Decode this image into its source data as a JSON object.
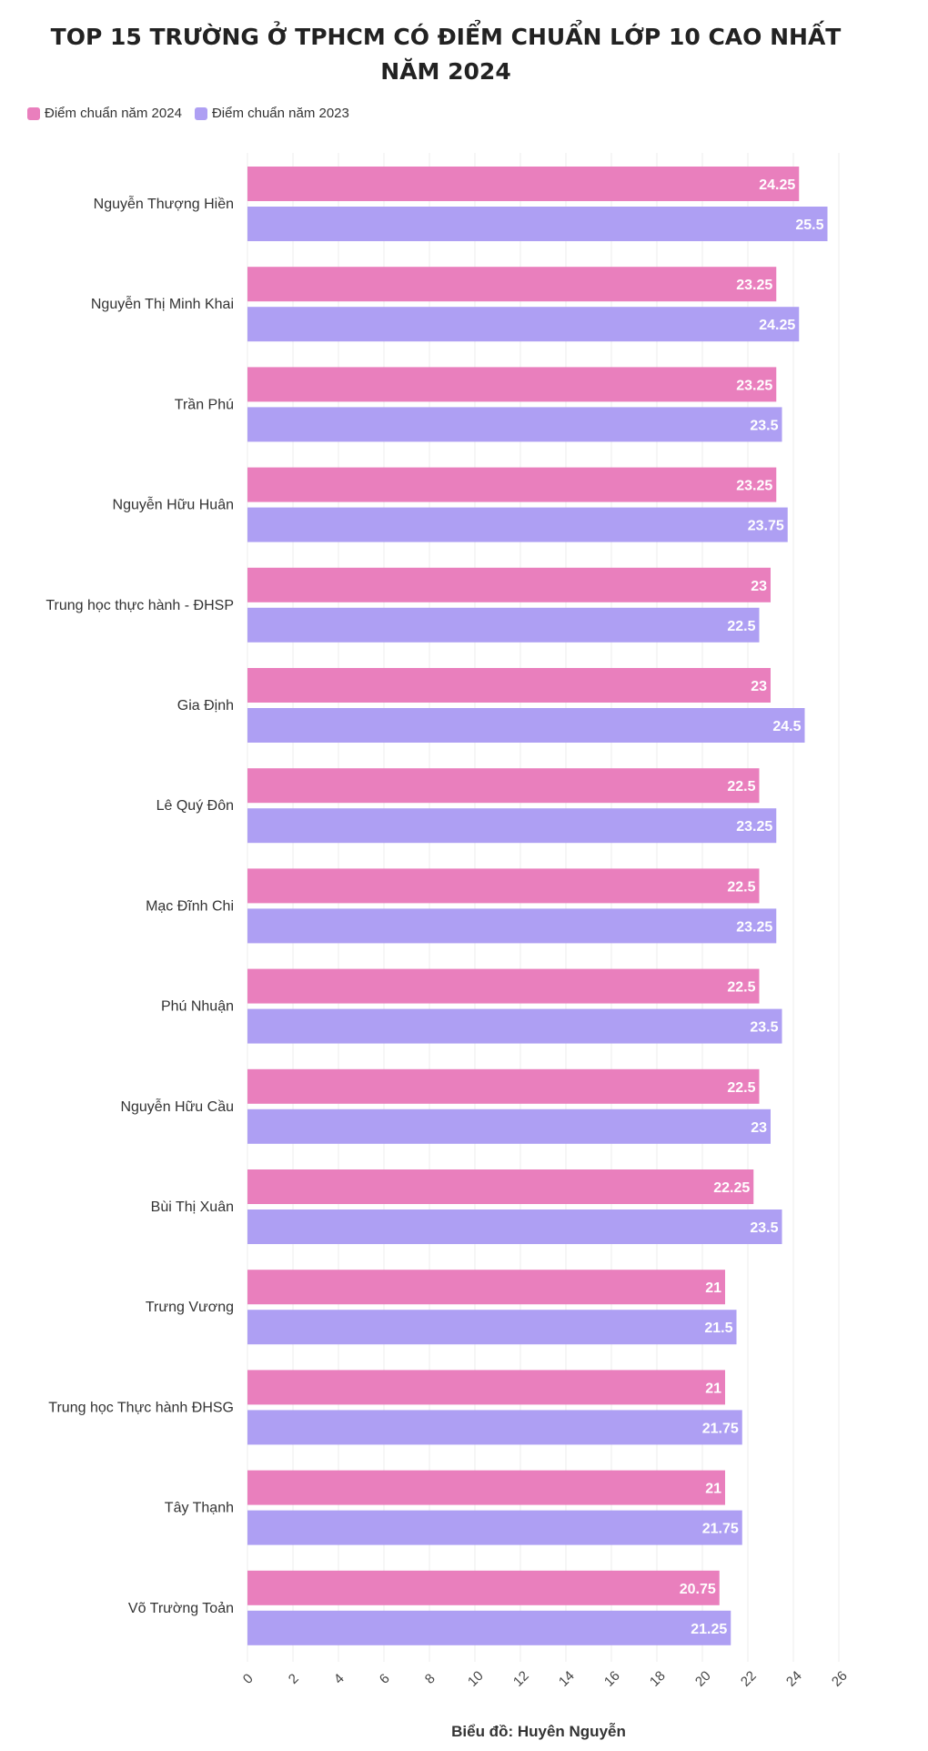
{
  "chart_data": {
    "type": "bar",
    "orientation": "horizontal",
    "title": "TOP 15 TRƯỜNG Ở TPHCM CÓ ĐIỂM CHUẨN LỚP 10 CAO NHẤT NĂM 2024",
    "categories": [
      "Nguyễn Thượng Hiền",
      "Nguyễn Thị Minh Khai",
      "Trần Phú",
      "Nguyễn Hữu Huân",
      "Trung học thực hành - ĐHSP",
      "Gia Định",
      "Lê Quý Đôn",
      "Mạc Đĩnh Chi",
      "Phú Nhuận",
      "Nguyễn Hữu Cầu",
      "Bùi Thị Xuân",
      "Trưng Vương",
      "Trung học Thực hành ĐHSG",
      "Tây Thạnh",
      "Võ Trường Toản"
    ],
    "series": [
      {
        "name": "Điểm chuẩn năm 2024",
        "color": "#e97fbd",
        "values": [
          24.25,
          23.25,
          23.25,
          23.25,
          23,
          23,
          22.5,
          22.5,
          22.5,
          22.5,
          22.25,
          21,
          21,
          21,
          20.75
        ]
      },
      {
        "name": "Điểm chuẩn năm 2023",
        "color": "#ae9ff3",
        "values": [
          25.5,
          24.25,
          23.5,
          23.75,
          22.5,
          24.5,
          23.25,
          23.25,
          23.5,
          23,
          23.5,
          21.5,
          21.75,
          21.75,
          21.25
        ]
      }
    ],
    "xlim": [
      0,
      26
    ],
    "xticks": [
      0,
      2,
      4,
      6,
      8,
      10,
      12,
      14,
      16,
      18,
      20,
      22,
      24,
      26
    ],
    "grid": true,
    "legend_position": "top-left",
    "credit": "Biểu đồ: Huyên Nguyễn"
  }
}
